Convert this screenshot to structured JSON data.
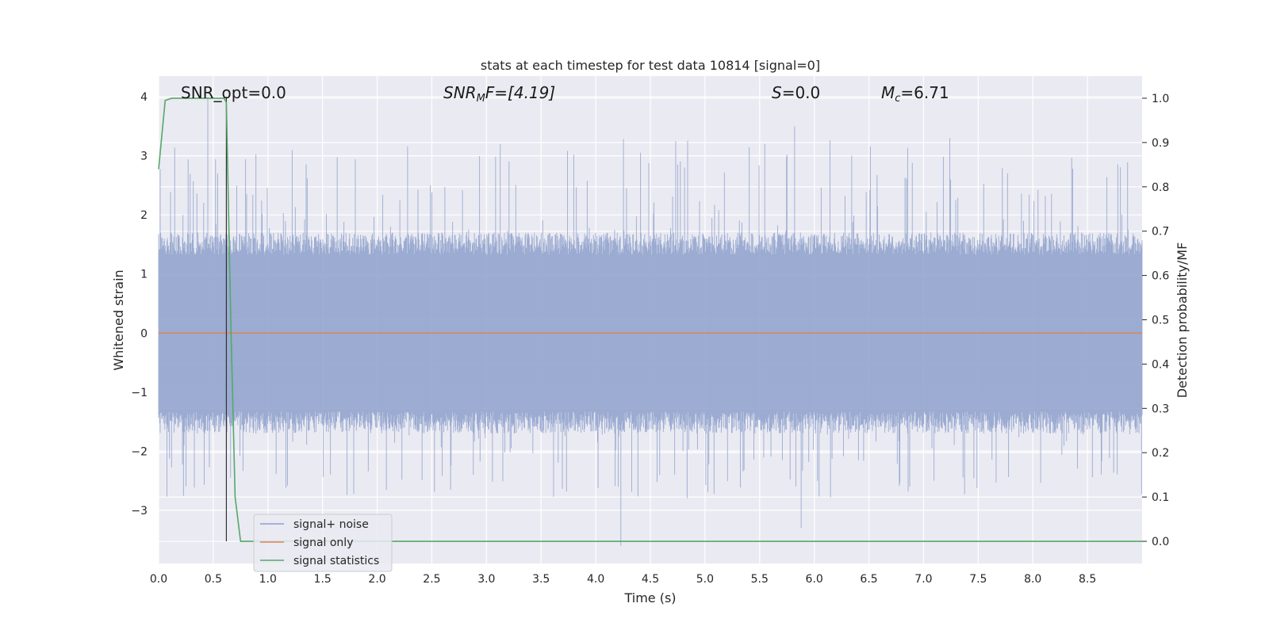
{
  "chart_data": {
    "type": "line",
    "title": "stats at each timestep for test data 10814 [signal=0]",
    "xlabel": "Time (s)",
    "ylabel_left": "Whitened strain",
    "ylabel_right": "Detection probability/MF",
    "xlim": [
      0.0,
      9.0
    ],
    "ylim_left": [
      -3.9,
      4.35
    ],
    "ylim_right": [
      -0.05,
      1.05
    ],
    "x_ticks": [
      0.0,
      0.5,
      1.0,
      1.5,
      2.0,
      2.5,
      3.0,
      3.5,
      4.0,
      4.5,
      5.0,
      5.5,
      6.0,
      6.5,
      7.0,
      7.5,
      8.0,
      8.5
    ],
    "x_tick_labels": [
      "0.0",
      "0.5",
      "1.0",
      "1.5",
      "2.0",
      "2.5",
      "3.0",
      "3.5",
      "4.0",
      "4.5",
      "5.0",
      "5.5",
      "6.0",
      "6.5",
      "7.0",
      "7.5",
      "8.0",
      "8.5"
    ],
    "y_ticks_left": [
      4,
      3,
      2,
      1,
      0,
      -1,
      -2,
      -3
    ],
    "y_tick_labels_left": [
      "4",
      "3",
      "2",
      "1",
      "0",
      "−1",
      "−2",
      "−3"
    ],
    "y_ticks_right": [
      1.0,
      0.9,
      0.8,
      0.7,
      0.6,
      0.5,
      0.4,
      0.3,
      0.2,
      0.1,
      0.0
    ],
    "y_tick_labels_right": [
      "1.0",
      "0.9",
      "0.8",
      "0.7",
      "0.6",
      "0.5",
      "0.4",
      "0.3",
      "0.2",
      "0.1",
      "0.0"
    ],
    "grid": true,
    "legend_position": "lower-left",
    "series": [
      {
        "name": "signal+ noise",
        "axis": "left",
        "color": "#8da0cb",
        "style": "noise",
        "noise": {
          "typical_abs_max": 1.7,
          "peak_max": 4.0,
          "peak_min": -3.6
        }
      },
      {
        "name": "signal only",
        "axis": "left",
        "color": "#dd8452",
        "values_x": [
          0.0,
          9.0
        ],
        "values_y": [
          0.0,
          0.0
        ]
      },
      {
        "name": "signal statistics",
        "axis": "right",
        "color": "#55a868",
        "values_x": [
          0.0,
          0.06,
          0.12,
          0.6,
          0.62,
          0.66,
          0.7,
          0.75,
          9.0
        ],
        "values_y": [
          0.84,
          0.995,
          1.0,
          1.0,
          0.99,
          0.5,
          0.1,
          0.0,
          0.0
        ]
      }
    ],
    "vertical_marker": {
      "x": 0.62,
      "color": "#333333"
    },
    "annotations": [
      {
        "text": "SNR_opt=0.0",
        "x": 0.19
      },
      {
        "text_main": "SNR",
        "text_sub": "M",
        "text_tail": "F=[4.19]",
        "x": 2.6
      },
      {
        "text_main": "S",
        "text_tail": "=0.0",
        "x": 5.6
      },
      {
        "text_main": "M",
        "text_sub": "c",
        "text_tail": "=6.71",
        "x": 6.6
      }
    ]
  }
}
